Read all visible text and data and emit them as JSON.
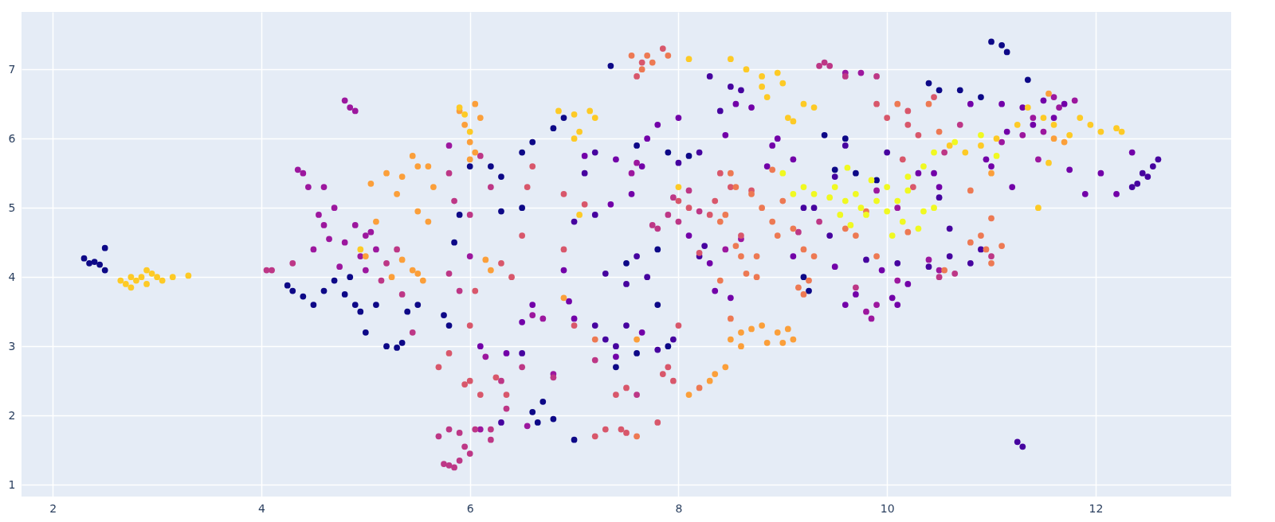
{
  "chart_data": {
    "type": "scatter",
    "xlim": [
      1.7,
      13.3
    ],
    "ylim": [
      0.83,
      7.83
    ],
    "xticks": [
      2,
      4,
      6,
      8,
      10,
      12
    ],
    "yticks": [
      1,
      2,
      3,
      4,
      5,
      6,
      7
    ],
    "grid": true,
    "legend": false,
    "marker": "circle",
    "series": [
      {
        "color": "#0d0887",
        "x": [
          2.3,
          2.35,
          2.4,
          2.45,
          2.5,
          2.5,
          4.25,
          4.3,
          4.4,
          4.5,
          4.6,
          4.7,
          4.8,
          4.85,
          4.9,
          4.95,
          5.0,
          5.1,
          5.2,
          5.3,
          5.35,
          5.4,
          5.5,
          5.75,
          5.8,
          5.85,
          5.9,
          6.0,
          6.2,
          6.3,
          6.5,
          6.6,
          6.8,
          6.9,
          6.3,
          6.5,
          6.6,
          6.65,
          6.7,
          6.8,
          7.0,
          7.35,
          7.6,
          7.9,
          8.1,
          7.5,
          7.8,
          7.8,
          7.4,
          7.6,
          7.9,
          9.4,
          9.5,
          9.7,
          9.9,
          9.6,
          10.4,
          10.5,
          10.7,
          10.9,
          11.0,
          11.1,
          11.15,
          11.35,
          9.2,
          9.25
        ],
        "values": [
          4.27,
          4.2,
          4.22,
          4.18,
          4.42,
          4.1,
          3.88,
          3.8,
          3.72,
          3.6,
          3.8,
          3.95,
          3.75,
          4.0,
          3.6,
          3.5,
          3.2,
          3.6,
          3.0,
          2.98,
          3.05,
          3.5,
          3.6,
          3.45,
          3.3,
          4.5,
          4.9,
          5.6,
          5.6,
          5.45,
          5.8,
          5.95,
          6.15,
          6.3,
          4.95,
          5.0,
          2.05,
          1.9,
          2.2,
          1.95,
          1.65,
          7.05,
          5.9,
          5.8,
          5.75,
          4.2,
          4.4,
          3.6,
          2.7,
          2.9,
          3.0,
          6.05,
          5.55,
          5.5,
          5.4,
          6.0,
          6.8,
          6.7,
          6.7,
          6.6,
          7.4,
          7.35,
          7.25,
          6.85,
          4.0,
          3.8
        ]
      },
      {
        "color": "#46039f",
        "x": [
          7.2,
          7.3,
          7.4,
          7.5,
          7.6,
          7.7,
          7.5,
          7.3,
          7.2,
          7.0,
          7.1,
          7.2,
          8.0,
          8.2,
          8.25,
          8.2,
          8.4,
          8.5,
          8.6,
          8.3,
          9.3,
          9.45,
          9.6,
          9.8,
          10.1,
          10.4,
          10.6,
          10.8,
          10.9,
          10.5,
          10.6,
          10.0,
          12.35,
          12.4,
          12.5,
          12.55,
          12.6,
          12.45,
          11.25,
          11.3,
          6.3,
          6.5,
          7.8,
          7.95,
          9.5,
          9.2
        ],
        "values": [
          3.3,
          3.1,
          3.0,
          3.3,
          4.3,
          4.0,
          3.9,
          4.05,
          4.9,
          4.8,
          5.5,
          5.8,
          5.65,
          5.8,
          4.45,
          4.3,
          6.4,
          6.75,
          6.7,
          6.9,
          5.0,
          4.6,
          5.9,
          4.25,
          4.2,
          4.15,
          4.3,
          4.2,
          4.4,
          5.15,
          4.7,
          5.8,
          5.3,
          5.35,
          5.45,
          5.6,
          5.7,
          5.5,
          1.62,
          1.55,
          1.9,
          2.9,
          2.95,
          3.1,
          5.45,
          5.0
        ]
      },
      {
        "color": "#7201a8",
        "x": [
          11.3,
          11.4,
          11.5,
          11.6,
          11.7,
          11.75,
          11.9,
          12.05,
          12.2,
          12.35,
          11.0,
          10.95,
          11.2,
          10.45,
          10.3,
          10.5,
          10.1,
          10.05,
          9.95,
          10.2,
          9.6,
          9.7,
          8.55,
          8.7,
          8.45,
          8.9,
          9.1,
          8.95,
          8.85,
          7.1,
          7.4,
          7.65,
          7.55,
          7.35,
          7.8,
          7.7,
          8.0,
          8.1,
          8.3,
          8.5,
          8.35,
          7.4,
          7.65,
          7.0,
          6.95,
          6.6,
          6.5,
          6.35,
          6.1,
          6.9,
          10.8,
          9.1,
          9.5,
          11.1,
          11.15
        ],
        "values": [
          6.45,
          6.2,
          6.55,
          6.3,
          6.5,
          5.55,
          5.2,
          5.5,
          5.2,
          5.8,
          5.6,
          5.7,
          5.3,
          5.5,
          5.5,
          5.3,
          3.6,
          3.7,
          4.1,
          3.9,
          3.6,
          3.75,
          6.5,
          6.45,
          6.05,
          5.9,
          5.7,
          6.0,
          5.6,
          5.75,
          5.7,
          5.6,
          5.2,
          5.05,
          6.2,
          6.0,
          6.3,
          4.6,
          4.2,
          3.7,
          3.8,
          2.85,
          3.2,
          3.4,
          3.65,
          3.6,
          3.35,
          2.9,
          3.0,
          4.1,
          6.5,
          4.3,
          4.15,
          6.5,
          6.1
        ]
      },
      {
        "color": "#9c179e",
        "x": [
          4.35,
          4.4,
          4.45,
          4.55,
          4.6,
          4.5,
          4.65,
          4.8,
          4.9,
          5.0,
          4.8,
          4.85,
          4.9,
          4.95,
          5.0,
          5.1,
          5.05,
          4.6,
          4.7,
          9.75,
          9.6,
          9.9,
          10.1,
          9.8,
          9.85,
          9.9,
          10.1,
          10.4,
          10.5,
          11.4,
          11.5,
          11.6,
          11.65,
          11.8,
          11.45,
          11.1,
          11.3,
          6.6,
          6.7,
          6.15,
          6.8,
          6.0,
          5.8,
          4.75,
          6.55,
          6.1,
          7.55,
          7.6,
          8.45,
          8.6
        ],
        "values": [
          5.55,
          5.5,
          5.3,
          4.9,
          4.75,
          4.4,
          4.55,
          4.5,
          4.75,
          4.6,
          6.55,
          6.45,
          6.4,
          4.3,
          4.1,
          4.4,
          4.65,
          5.3,
          5.0,
          6.95,
          6.95,
          5.25,
          5.0,
          3.5,
          3.4,
          3.6,
          3.95,
          4.25,
          4.1,
          6.3,
          6.1,
          6.6,
          6.45,
          6.55,
          5.7,
          5.95,
          6.05,
          3.45,
          3.4,
          2.85,
          2.6,
          4.3,
          5.9,
          4.15,
          1.85,
          1.8,
          5.5,
          5.65,
          4.4,
          4.55
        ]
      },
      {
        "color": "#bd3786",
        "x": [
          5.75,
          5.8,
          5.85,
          5.9,
          5.95,
          6.0,
          5.7,
          5.8,
          5.9,
          6.05,
          6.2,
          6.2,
          5.8,
          5.9,
          5.85,
          5.8,
          5.3,
          5.2,
          5.15,
          5.45,
          5.35,
          6.0,
          6.2,
          6.1,
          6.3,
          6.35,
          6.5,
          6.8,
          7.2,
          7.6,
          7.8,
          7.9,
          8.0,
          7.75,
          7.95,
          8.1,
          8.2,
          9.45,
          9.4,
          9.35,
          9.6,
          9.9,
          10.55,
          10.7,
          11.0,
          10.65,
          9.35,
          9.15,
          4.1,
          4.05,
          4.3,
          10.5,
          9.7
        ],
        "values": [
          1.3,
          1.28,
          1.25,
          1.35,
          1.55,
          1.45,
          1.7,
          1.8,
          1.75,
          1.8,
          1.8,
          1.65,
          4.05,
          3.8,
          5.1,
          5.5,
          4.4,
          4.2,
          3.95,
          3.2,
          3.75,
          4.9,
          5.3,
          5.75,
          2.5,
          2.1,
          2.7,
          2.55,
          2.8,
          2.3,
          4.7,
          4.9,
          4.8,
          4.75,
          5.15,
          5.25,
          4.95,
          7.05,
          7.1,
          7.05,
          6.9,
          6.9,
          5.8,
          6.2,
          4.3,
          4.05,
          4.8,
          4.65,
          4.1,
          4.1,
          4.2,
          4.0,
          3.85
        ]
      },
      {
        "color": "#d8576b",
        "x": [
          5.8,
          5.7,
          6.0,
          5.95,
          6.1,
          6.25,
          6.35,
          6.0,
          6.05,
          6.3,
          6.5,
          6.6,
          6.55,
          6.4,
          6.9,
          7.0,
          7.4,
          7.5,
          7.45,
          7.3,
          7.5,
          7.2,
          7.8,
          7.85,
          7.9,
          7.95,
          7.6,
          7.65,
          7.85,
          8.0,
          8.1,
          8.3,
          8.4,
          8.5,
          8.35,
          8.6,
          9.9,
          10.0,
          10.2,
          10.3,
          10.2,
          10.45,
          10.15,
          10.25,
          8.2,
          8.0,
          7.1,
          6.9,
          8.7
        ],
        "values": [
          2.9,
          2.7,
          2.5,
          2.45,
          2.3,
          2.55,
          2.3,
          3.3,
          3.8,
          4.2,
          4.6,
          5.6,
          5.3,
          4.0,
          4.4,
          3.3,
          2.3,
          2.4,
          1.8,
          1.8,
          1.75,
          1.7,
          1.9,
          2.6,
          2.7,
          2.5,
          6.9,
          7.1,
          7.3,
          5.1,
          5.0,
          4.9,
          5.5,
          5.3,
          5.1,
          4.6,
          6.5,
          6.3,
          6.2,
          6.05,
          6.4,
          6.6,
          5.7,
          5.3,
          4.35,
          3.3,
          5.05,
          5.2,
          5.25
        ]
      },
      {
        "color": "#ed7953",
        "x": [
          7.75,
          7.65,
          7.55,
          7.7,
          7.9,
          8.5,
          8.55,
          8.7,
          8.8,
          8.4,
          8.55,
          8.45,
          8.6,
          8.65,
          8.75,
          8.9,
          8.9,
          9.0,
          8.95,
          9.1,
          9.2,
          9.3,
          9.25,
          9.2,
          9.7,
          9.9,
          10.2,
          10.55,
          10.8,
          10.9,
          10.95,
          11.0,
          11.1,
          11.0,
          10.8,
          10.5,
          10.4,
          10.1,
          8.4,
          8.5,
          7.6,
          8.2,
          7.2,
          9.8,
          9.6,
          8.75,
          9.15
        ],
        "values": [
          7.1,
          7.0,
          7.2,
          7.2,
          7.2,
          5.5,
          5.3,
          5.2,
          5.0,
          4.8,
          4.45,
          4.9,
          4.3,
          4.05,
          4.3,
          4.8,
          5.55,
          5.1,
          4.6,
          4.7,
          4.4,
          4.3,
          3.95,
          3.75,
          4.6,
          4.3,
          4.65,
          4.1,
          4.5,
          4.6,
          4.4,
          4.2,
          4.45,
          4.85,
          5.25,
          6.1,
          6.5,
          6.5,
          3.95,
          3.4,
          1.7,
          2.4,
          3.1,
          4.95,
          4.7,
          4.0,
          3.85
        ]
      },
      {
        "color": "#fb9f3a",
        "x": [
          5.05,
          5.2,
          5.35,
          5.45,
          5.5,
          5.6,
          5.3,
          5.5,
          5.6,
          5.65,
          5.45,
          5.5,
          5.55,
          5.35,
          5.25,
          5.1,
          5.0,
          5.9,
          5.95,
          6.0,
          6.05,
          6.1,
          6.0,
          6.05,
          6.15,
          6.2,
          8.5,
          8.6,
          8.7,
          8.8,
          8.95,
          9.0,
          9.1,
          8.35,
          8.45,
          8.3,
          8.1,
          8.6,
          7.6,
          6.9,
          9.05,
          8.85,
          11.0,
          11.55,
          11.6,
          11.7
        ],
        "values": [
          5.35,
          5.5,
          5.45,
          5.75,
          5.6,
          5.6,
          5.2,
          4.95,
          4.8,
          5.3,
          4.1,
          4.05,
          3.95,
          4.25,
          4.0,
          4.8,
          4.3,
          6.4,
          6.2,
          5.95,
          6.5,
          6.3,
          5.7,
          5.8,
          4.25,
          4.1,
          3.1,
          3.2,
          3.25,
          3.3,
          3.2,
          3.05,
          3.1,
          2.6,
          2.7,
          2.5,
          2.3,
          3.0,
          3.1,
          3.7,
          3.25,
          3.05,
          5.5,
          6.65,
          6.0,
          5.95
        ]
      },
      {
        "color": "#fdca26",
        "x": [
          2.65,
          2.7,
          2.75,
          2.8,
          2.85,
          2.9,
          2.95,
          3.0,
          3.05,
          3.15,
          3.3,
          2.75,
          2.9,
          5.9,
          5.95,
          6.0,
          6.85,
          7.0,
          7.05,
          7.15,
          7.2,
          7.0,
          8.1,
          8.5,
          8.65,
          8.8,
          8.95,
          9.0,
          8.85,
          9.05,
          9.1,
          9.2,
          9.3,
          8.8,
          10.6,
          10.75,
          10.9,
          11.05,
          11.35,
          11.5,
          11.6,
          11.75,
          11.85,
          11.95,
          12.05,
          12.2,
          12.25,
          11.45,
          11.25,
          7.05,
          8.0,
          4.95,
          11.55
        ],
        "values": [
          3.95,
          3.9,
          4.0,
          3.95,
          4.0,
          3.9,
          4.05,
          4.0,
          3.95,
          4.0,
          4.02,
          3.85,
          4.1,
          6.45,
          6.35,
          6.1,
          6.4,
          6.35,
          6.1,
          6.4,
          6.3,
          6.0,
          7.15,
          7.15,
          7.0,
          6.9,
          6.95,
          6.8,
          6.6,
          6.3,
          6.25,
          6.5,
          6.45,
          6.75,
          5.9,
          5.8,
          5.9,
          6.0,
          6.45,
          6.3,
          6.2,
          6.05,
          6.3,
          6.2,
          6.1,
          6.15,
          6.1,
          5.0,
          6.2,
          4.9,
          5.3,
          4.4,
          5.65
        ]
      },
      {
        "color": "#f0f921",
        "x": [
          9.0,
          9.1,
          9.2,
          9.3,
          9.45,
          9.5,
          9.6,
          9.7,
          9.75,
          9.8,
          9.9,
          10.0,
          10.1,
          10.2,
          10.15,
          9.65,
          9.55,
          10.35,
          10.45,
          9.62,
          10.0,
          10.2,
          10.35,
          10.45,
          10.65,
          10.9,
          11.05,
          10.3,
          10.05,
          9.85
        ],
        "values": [
          5.5,
          5.2,
          5.3,
          5.2,
          5.15,
          5.3,
          5.1,
          5.2,
          5.0,
          4.9,
          5.1,
          4.95,
          5.1,
          5.25,
          4.8,
          4.75,
          4.9,
          4.95,
          5.0,
          5.58,
          5.3,
          5.45,
          5.6,
          5.8,
          5.95,
          6.05,
          5.75,
          4.7,
          4.6,
          5.4
        ]
      }
    ]
  }
}
